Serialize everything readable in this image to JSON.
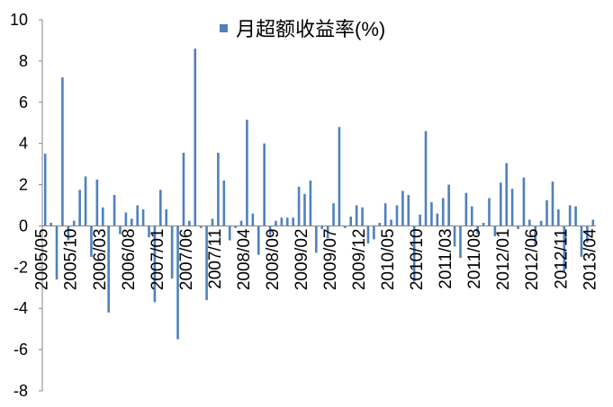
{
  "colors": {
    "bar": "#4F81BD",
    "axis": "#868686",
    "text": "#000000"
  },
  "chart_data": {
    "type": "bar",
    "legend": "top",
    "grid": false,
    "ylim": [
      -8,
      10
    ],
    "y_tick_labels": [
      "10",
      "8",
      "6",
      "4",
      "2",
      "0",
      "-2",
      "-4",
      "-6",
      "-8"
    ],
    "x_tick_labels": [
      "2005/05",
      "2005/10",
      "2006/03",
      "2006/08",
      "2007/01",
      "2007/06",
      "2007/11",
      "2008/04",
      "2008/09",
      "2009/02",
      "2009/07",
      "2009/12",
      "2010/05",
      "2010/10",
      "2011/03",
      "2011/08",
      "2012/01",
      "2012/06",
      "2012/11",
      "2013/04"
    ],
    "series": [
      {
        "name": "月超额收益率(%)",
        "values": [
          3.5,
          0.15,
          -2.6,
          7.2,
          -0.7,
          0.25,
          1.75,
          2.4,
          -1.5,
          2.25,
          0.9,
          -4.2,
          1.5,
          -0.4,
          0.65,
          0.35,
          1.0,
          0.8,
          -0.55,
          -3.7,
          1.75,
          0.8,
          -2.55,
          -5.5,
          3.55,
          0.25,
          8.6,
          -0.1,
          -3.6,
          0.35,
          3.55,
          2.2,
          -0.7,
          -0.1,
          0.25,
          5.15,
          0.6,
          -1.4,
          4.0,
          -0.45,
          0.25,
          0.4,
          0.4,
          0.4,
          1.9,
          1.55,
          2.2,
          -1.3,
          -0.15,
          -0.6,
          1.1,
          4.8,
          -0.1,
          0.45,
          1.0,
          0.9,
          -0.85,
          -0.65,
          0.15,
          1.1,
          0.3,
          1.0,
          1.7,
          1.5,
          -2.7,
          0.55,
          4.6,
          1.15,
          0.6,
          1.35,
          2.0,
          -1.0,
          -1.55,
          1.6,
          0.95,
          -0.4,
          0.15,
          1.35,
          -0.5,
          2.1,
          3.05,
          1.8,
          -0.15,
          2.35,
          0.3,
          -0.9,
          0.25,
          1.25,
          2.15,
          0.8,
          -2.2,
          1.0,
          0.95,
          -1.5,
          -0.8,
          0.3
        ]
      }
    ]
  }
}
